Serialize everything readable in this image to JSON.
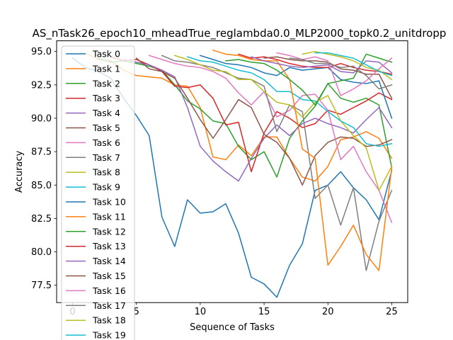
{
  "chart_data": {
    "type": "line",
    "title": "AS_nTask26_epoch10_mheadTrue_reglambda0.0_MLP2000_topk0.2_unitdropp",
    "xlabel": "Sequence of Tasks",
    "ylabel": "Accuracy",
    "xlim": [
      -1.25,
      26.25
    ],
    "ylim": [
      76.2,
      95.8
    ],
    "xticks": [
      0,
      5,
      10,
      15,
      20,
      25
    ],
    "yticks": [
      77.5,
      80.0,
      82.5,
      85.0,
      87.5,
      90.0,
      92.5,
      95.0
    ],
    "grid": false,
    "legend_position": "upper-left",
    "series": [
      {
        "name": "Task 0",
        "color": "#1f77b4",
        "x": [
          0,
          1,
          2,
          3,
          4,
          5,
          6,
          7,
          8,
          9,
          10,
          11,
          12,
          13,
          14,
          15,
          16,
          17,
          18,
          19,
          20,
          21,
          22,
          23,
          24,
          25
        ],
        "values": [
          94.5,
          93.8,
          93.5,
          93.0,
          91.5,
          90.2,
          88.7,
          82.6,
          80.4,
          83.9,
          82.9,
          83.0,
          83.6,
          81.4,
          78.1,
          77.6,
          76.6,
          79.0,
          80.6,
          84.6,
          85.0,
          86.0,
          84.8,
          83.9,
          82.4,
          86.1
        ]
      },
      {
        "name": "Task 1",
        "color": "#ff7f0e",
        "x": [
          1,
          2,
          3,
          4,
          5,
          6,
          7,
          8,
          9,
          10,
          11,
          12,
          13,
          14,
          15,
          16,
          17,
          18,
          19,
          20,
          21,
          22,
          23,
          24,
          25
        ],
        "values": [
          94.9,
          94.4,
          94.3,
          93.6,
          93.2,
          93.1,
          93.0,
          92.5,
          92.4,
          90.8,
          87.1,
          86.9,
          88.0,
          87.2,
          88.6,
          88.6,
          87.0,
          85.6,
          85.3,
          86.4,
          88.4,
          88.6,
          89.0,
          88.5,
          87.0
        ]
      },
      {
        "name": "Task 2",
        "color": "#2ca02c",
        "x": [
          2,
          3,
          4,
          5,
          6,
          7,
          8,
          9,
          10,
          11,
          12,
          13,
          14,
          15,
          16,
          17,
          18,
          19,
          20,
          21,
          22,
          23,
          24,
          25
        ],
        "values": [
          94.5,
          94.2,
          94.3,
          94.1,
          93.9,
          93.6,
          92.5,
          91.3,
          90.7,
          89.8,
          89.6,
          87.9,
          86.9,
          87.5,
          85.6,
          88.5,
          89.8,
          90.9,
          92.6,
          91.5,
          91.2,
          91.5,
          91.0,
          86.3
        ]
      },
      {
        "name": "Task 3",
        "color": "#d62728",
        "x": [
          3,
          4,
          5,
          6,
          7,
          8,
          9,
          10,
          11,
          12,
          13,
          14,
          15,
          16,
          17,
          18,
          19,
          20,
          21,
          22,
          23,
          24,
          25
        ],
        "values": [
          94.6,
          94.3,
          94.4,
          94.0,
          93.5,
          92.4,
          92.3,
          92.5,
          91.5,
          89.5,
          89.7,
          86.0,
          88.9,
          90.5,
          90.0,
          89.3,
          89.6,
          90.6,
          90.3,
          90.8,
          91.3,
          91.9,
          91.4
        ]
      },
      {
        "name": "Task 4",
        "color": "#9467bd",
        "x": [
          4,
          5,
          6,
          7,
          8,
          9,
          10,
          11,
          12,
          13,
          14,
          15,
          16,
          17,
          18,
          19,
          20,
          21,
          22,
          23,
          24,
          25
        ],
        "values": [
          94.4,
          94.2,
          94.0,
          93.6,
          93.1,
          90.8,
          87.9,
          86.8,
          86.0,
          85.3,
          87.0,
          88.5,
          89.5,
          88.7,
          89.6,
          90.0,
          89.6,
          89.3,
          88.9,
          89.9,
          90.8,
          89.3
        ]
      },
      {
        "name": "Task 5",
        "color": "#8c564b",
        "x": [
          5,
          6,
          7,
          8,
          9,
          10,
          11,
          12,
          13,
          14,
          15,
          16,
          17,
          18,
          19,
          20,
          21,
          22,
          23,
          24,
          25
        ],
        "values": [
          94.5,
          93.7,
          93.5,
          93.0,
          91.5,
          89.9,
          88.5,
          89.9,
          91.4,
          90.8,
          88.8,
          88.2,
          87.0,
          85.0,
          87.2,
          88.2,
          88.6,
          88.5,
          87.9,
          88.0,
          88.4
        ]
      },
      {
        "name": "Task 6",
        "color": "#e377c2",
        "x": [
          6,
          7,
          8,
          9,
          10,
          11,
          12,
          13,
          14,
          15,
          16,
          17,
          18,
          19,
          20,
          21,
          22,
          23,
          24,
          25
        ],
        "values": [
          94.7,
          94.4,
          94.1,
          93.9,
          93.8,
          93.5,
          93.0,
          91.9,
          91.0,
          92.0,
          90.1,
          90.6,
          91.7,
          91.8,
          90.6,
          86.9,
          87.9,
          86.0,
          84.6,
          82.2
        ]
      },
      {
        "name": "Task 7",
        "color": "#7f7f7f",
        "x": [
          7,
          8,
          9,
          10,
          11,
          12,
          13,
          14,
          15,
          16,
          17,
          18,
          19,
          20,
          21,
          22,
          23,
          24,
          25
        ],
        "values": [
          94.7,
          94.3,
          94.2,
          94.0,
          93.8,
          93.4,
          93.0,
          92.9,
          92.4,
          89.0,
          91.0,
          90.5,
          84.0,
          85.0,
          82.0,
          84.8,
          78.6,
          82.3,
          84.6
        ]
      },
      {
        "name": "Task 8",
        "color": "#bcbd22",
        "x": [
          8,
          9,
          10,
          11,
          12,
          13,
          14,
          15,
          16,
          17,
          18,
          19,
          20,
          21,
          22,
          23,
          24,
          25
        ],
        "values": [
          94.7,
          94.4,
          94.0,
          93.6,
          93.5,
          92.9,
          92.9,
          92.0,
          91.2,
          91.0,
          90.1,
          91.2,
          91.7,
          89.8,
          88.7,
          87.8,
          84.6,
          86.4
        ]
      },
      {
        "name": "Task 9",
        "color": "#17becf",
        "x": [
          9,
          10,
          11,
          12,
          13,
          14,
          15,
          16,
          17,
          18,
          19,
          20,
          21,
          22,
          23,
          24,
          25
        ],
        "values": [
          94.6,
          94.3,
          94.2,
          93.9,
          93.6,
          93.4,
          92.9,
          92.0,
          92.0,
          91.4,
          91.3,
          90.5,
          89.8,
          89.3,
          88.1,
          87.9,
          88.1
        ]
      },
      {
        "name": "Task 10",
        "color": "#1f77b4",
        "x": [
          10,
          11,
          12,
          13,
          14,
          15,
          16,
          17,
          18,
          19,
          20,
          21,
          22,
          23,
          24,
          25
        ],
        "values": [
          94.7,
          94.4,
          94.1,
          94.0,
          93.8,
          93.4,
          93.2,
          93.8,
          93.6,
          93.7,
          93.8,
          92.9,
          92.7,
          92.6,
          92.8,
          90.0
        ]
      },
      {
        "name": "Task 11",
        "color": "#ff7f0e",
        "x": [
          11,
          12,
          13,
          14,
          15,
          16,
          17,
          18,
          19,
          20,
          21,
          22,
          23,
          24,
          25
        ],
        "values": [
          95.1,
          94.8,
          94.7,
          94.4,
          94.3,
          94.3,
          92.9,
          87.7,
          87.0,
          79.0,
          80.4,
          82.0,
          79.8,
          78.6,
          86.3
        ]
      },
      {
        "name": "Task 12",
        "color": "#2ca02c",
        "x": [
          12,
          13,
          14,
          15,
          16,
          17,
          18,
          19,
          20,
          21,
          22,
          23,
          24,
          25
        ],
        "values": [
          94.3,
          94.4,
          94.2,
          94.1,
          93.6,
          92.9,
          92.1,
          91.0,
          92.6,
          92.8,
          93.0,
          94.8,
          94.5,
          94.2
        ]
      },
      {
        "name": "Task 13",
        "color": "#d62728",
        "x": [
          13,
          14,
          15,
          16,
          17,
          18,
          19,
          20,
          21,
          22,
          23,
          24,
          25
        ],
        "values": [
          94.8,
          94.5,
          94.6,
          94.4,
          94.1,
          93.9,
          93.8,
          93.8,
          94.1,
          93.8,
          93.6,
          93.5,
          93.3
        ]
      },
      {
        "name": "Task 14",
        "color": "#9467bd",
        "x": [
          14,
          15,
          16,
          17,
          18,
          19,
          20,
          21,
          22,
          23,
          24,
          25
        ],
        "values": [
          94.6,
          94.3,
          94.1,
          93.9,
          93.8,
          93.9,
          94.0,
          93.5,
          93.4,
          94.3,
          94.2,
          93.4
        ]
      },
      {
        "name": "Task 15",
        "color": "#8c564b",
        "x": [
          15,
          16,
          17,
          18,
          19,
          20,
          21,
          22,
          23,
          24,
          25
        ],
        "values": [
          94.5,
          94.6,
          94.4,
          94.3,
          94.3,
          94.2,
          93.7,
          93.6,
          93.3,
          93.3,
          91.5
        ]
      },
      {
        "name": "Task 16",
        "color": "#e377c2",
        "x": [
          16,
          17,
          18,
          19,
          20,
          21,
          22,
          23,
          24,
          25
        ],
        "values": [
          94.9,
          94.7,
          94.4,
          94.6,
          94.3,
          91.7,
          92.2,
          92.8,
          93.7,
          94.5
        ]
      },
      {
        "name": "Task 17",
        "color": "#7f7f7f",
        "x": [
          17,
          18,
          19,
          20,
          21,
          22,
          23,
          24,
          25
        ],
        "values": [
          94.5,
          94.4,
          94.1,
          94.1,
          93.8,
          93.9,
          93.2,
          92.2,
          92.5
        ]
      },
      {
        "name": "Task 18",
        "color": "#bcbd22",
        "x": [
          18,
          19,
          20,
          21,
          22,
          23,
          24,
          25
        ],
        "values": [
          94.8,
          95.0,
          94.8,
          94.6,
          94.3,
          93.8,
          93.6,
          92.9
        ]
      },
      {
        "name": "Task 19",
        "color": "#17becf",
        "x": [
          19,
          20,
          21,
          22,
          23,
          24,
          25
        ],
        "values": [
          94.9,
          94.9,
          94.7,
          94.5,
          94.0,
          93.5,
          93.2
        ]
      }
    ]
  }
}
